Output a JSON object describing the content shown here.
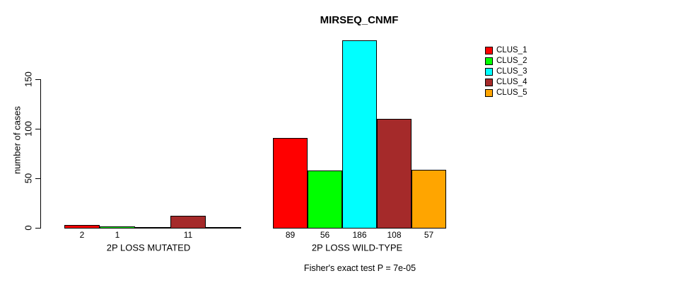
{
  "chart_data": {
    "type": "bar",
    "title": "MIRSEQ_CNMF",
    "ylabel": "number of cases",
    "xlabel": "",
    "yticks": [
      0,
      50,
      100,
      150
    ],
    "ylim": [
      0,
      190
    ],
    "grid": false,
    "legend_position": "right",
    "background_color": "#FFFFFF",
    "axis_color": "#000000",
    "categories": [
      "2P LOSS MUTATED",
      "2P LOSS WILD-TYPE"
    ],
    "series": [
      {
        "name": "CLUS_1",
        "color": "#FF0000",
        "values": [
          2,
          89
        ]
      },
      {
        "name": "CLUS_2",
        "color": "#00FF00",
        "values": [
          1,
          56
        ]
      },
      {
        "name": "CLUS_3",
        "color": "#00FFFF",
        "values": [
          0,
          186
        ]
      },
      {
        "name": "CLUS_4",
        "color": "#A52A2A",
        "values": [
          11,
          108
        ]
      },
      {
        "name": "CLUS_5",
        "color": "#FFA500",
        "values": [
          0,
          57
        ]
      }
    ],
    "bar_value_labels_shown": [
      [
        "2",
        "1",
        "",
        "11",
        ""
      ],
      [
        "89",
        "56",
        "186",
        "108",
        "57"
      ]
    ],
    "annotation": "Fisher's exact test P = 7e-05"
  }
}
